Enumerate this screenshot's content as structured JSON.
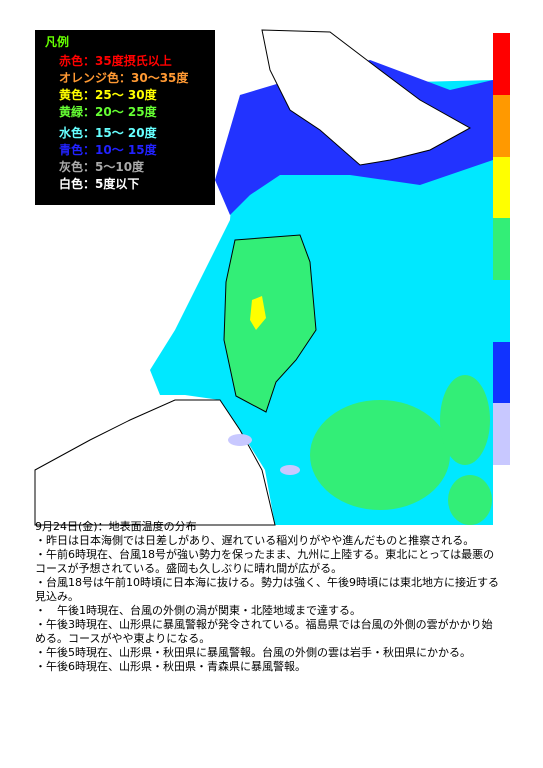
{
  "legend": {
    "title": "凡例",
    "items": [
      {
        "label": "赤色：35度摂氏以上",
        "color": "#ff0000"
      },
      {
        "label": "オレンジ色：30～35度",
        "color": "#ff9933"
      },
      {
        "label": "黄色：25～ 30度",
        "color": "#ffff00"
      },
      {
        "label": "黄緑：20～ 25度",
        "color": "#66ff33"
      },
      {
        "label": "水色：15～ 20度",
        "color": "#66ffff"
      },
      {
        "label": "青色：10～ 15度",
        "color": "#2222ff"
      },
      {
        "label": "灰色：5～10度",
        "color": "#aaaaaa"
      },
      {
        "label": "白色：5度以下",
        "color": "#ffffff"
      }
    ]
  },
  "caption": {
    "title": "9月24日(金)：地表面温度の分布",
    "lines": [
      "・昨日は日本海側では日差しがあり、遅れている稲刈りがやや進んだものと推察される。",
      "・午前6時現在、台風18号が強い勢力を保ったまま、九州に上陸する。東北にとっては最悪のコースが予想されている。盛岡も久しぶりに晴れ間が広がる。",
      "・台風18号は午前10時頃に日本海に抜ける。勢力は強く、午後9時頃には東北地方に接近する見込み。",
      "・　午後1時現在、台風の外側の渦が関東・北陸地域まで達する。",
      "・午後3時現在、山形県に暴風警報が発令されている。福島県では台風の外側の雲がかかり始める。コースがやや東よりになる。",
      "・午後5時現在、山形県・秋田県に暴風警報。台風の外側の雲は岩手・秋田県にかかる。",
      "・午後6時現在、山形県・秋田県・青森県に暴風警報。"
    ]
  }
}
